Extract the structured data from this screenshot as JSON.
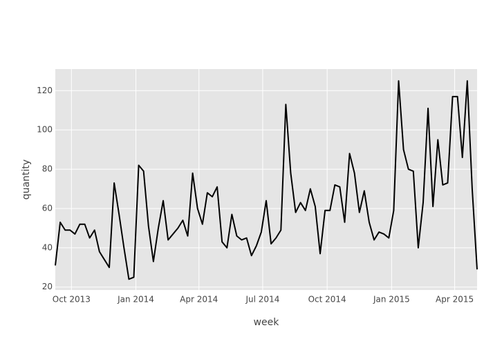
{
  "chart_data": {
    "type": "line",
    "x_label": "week",
    "y_label": "quantity",
    "x": [
      "2013-09-08",
      "2013-09-15",
      "2013-09-22",
      "2013-09-29",
      "2013-10-06",
      "2013-10-13",
      "2013-10-20",
      "2013-10-27",
      "2013-11-03",
      "2013-11-10",
      "2013-11-17",
      "2013-11-24",
      "2013-12-01",
      "2013-12-08",
      "2013-12-15",
      "2013-12-22",
      "2013-12-29",
      "2014-01-05",
      "2014-01-12",
      "2014-01-19",
      "2014-01-26",
      "2014-02-02",
      "2014-02-09",
      "2014-02-16",
      "2014-02-23",
      "2014-03-02",
      "2014-03-09",
      "2014-03-16",
      "2014-03-23",
      "2014-03-30",
      "2014-04-06",
      "2014-04-13",
      "2014-04-20",
      "2014-04-27",
      "2014-05-04",
      "2014-05-11",
      "2014-05-18",
      "2014-05-25",
      "2014-06-01",
      "2014-06-08",
      "2014-06-15",
      "2014-06-22",
      "2014-06-29",
      "2014-07-06",
      "2014-07-13",
      "2014-07-20",
      "2014-07-27",
      "2014-08-03",
      "2014-08-10",
      "2014-08-17",
      "2014-08-24",
      "2014-08-31",
      "2014-09-07",
      "2014-09-14",
      "2014-09-21",
      "2014-09-28",
      "2014-10-05",
      "2014-10-12",
      "2014-10-19",
      "2014-10-26",
      "2014-11-02",
      "2014-11-09",
      "2014-11-16",
      "2014-11-23",
      "2014-11-30",
      "2014-12-07",
      "2014-12-14",
      "2014-12-21",
      "2014-12-28",
      "2015-01-04",
      "2015-01-11",
      "2015-01-18",
      "2015-01-25",
      "2015-02-01",
      "2015-02-08",
      "2015-02-15",
      "2015-02-22",
      "2015-03-01",
      "2015-03-08",
      "2015-03-15",
      "2015-03-22",
      "2015-03-29",
      "2015-04-05",
      "2015-04-12",
      "2015-04-19",
      "2015-04-26",
      "2015-05-03"
    ],
    "values": [
      31,
      53,
      49,
      49,
      47,
      52,
      52,
      45,
      49,
      38,
      34,
      30,
      73,
      57,
      40,
      24,
      25,
      82,
      79,
      51,
      33,
      50,
      64,
      44,
      47,
      50,
      54,
      46,
      78,
      60,
      52,
      68,
      66,
      71,
      43,
      40,
      57,
      46,
      44,
      45,
      36,
      41,
      48,
      64,
      42,
      45,
      49,
      113,
      78,
      58,
      63,
      59,
      70,
      61,
      37,
      59,
      59,
      72,
      71,
      53,
      88,
      78,
      58,
      69,
      53,
      44,
      48,
      47,
      45,
      59,
      125,
      90,
      80,
      79,
      40,
      63,
      111,
      61,
      95,
      72,
      73,
      117,
      117,
      86,
      125,
      70,
      29
    ],
    "color": "#000000",
    "xlim": [
      "2013-09-08",
      "2015-05-03"
    ],
    "xticks": [
      {
        "value": "2013-10-01",
        "label": "Oct 2013"
      },
      {
        "value": "2014-01-01",
        "label": "Jan 2014"
      },
      {
        "value": "2014-04-01",
        "label": "Apr 2014"
      },
      {
        "value": "2014-07-01",
        "label": "Jul 2014"
      },
      {
        "value": "2014-10-01",
        "label": "Oct 2014"
      },
      {
        "value": "2015-01-01",
        "label": "Jan 2015"
      },
      {
        "value": "2015-04-01",
        "label": "Apr 2015"
      }
    ],
    "ylim": [
      18.5,
      131
    ],
    "yticks": [
      20,
      40,
      60,
      80,
      100,
      120
    ],
    "grid": true
  }
}
